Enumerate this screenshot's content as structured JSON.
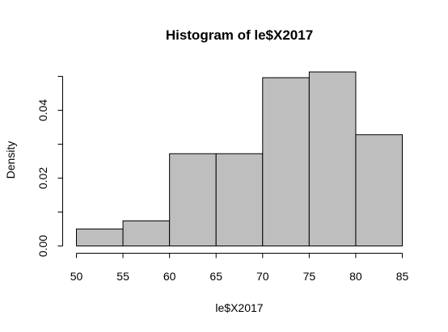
{
  "chart_data": {
    "type": "bar",
    "title": "Histogram of le$X2017",
    "xlabel": "le$X2017",
    "ylabel": "Density",
    "bins": [
      {
        "start": 50,
        "end": 55,
        "value": 0.005
      },
      {
        "start": 55,
        "end": 60,
        "value": 0.0074
      },
      {
        "start": 60,
        "end": 65,
        "value": 0.0272
      },
      {
        "start": 65,
        "end": 70,
        "value": 0.0272
      },
      {
        "start": 70,
        "end": 75,
        "value": 0.0496
      },
      {
        "start": 75,
        "end": 80,
        "value": 0.0513
      },
      {
        "start": 80,
        "end": 85,
        "value": 0.0328
      }
    ],
    "xlim": [
      50,
      85
    ],
    "ylim": [
      0,
      0.05
    ],
    "xticks": [
      "50",
      "55",
      "60",
      "65",
      "70",
      "75",
      "80",
      "85"
    ],
    "yticks": [
      "0.00",
      "0.02",
      "0.04"
    ],
    "colors": {
      "bar_fill": "#bebebe",
      "bar_stroke": "#000000"
    },
    "grid": false,
    "legend": "none"
  }
}
